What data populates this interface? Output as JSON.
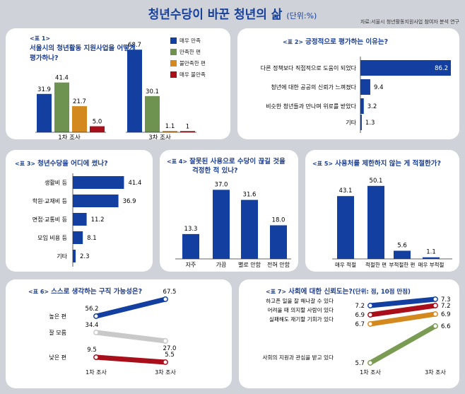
{
  "header": {
    "title": "청년수당이 바꾼 청년의 삶",
    "unit": "(단위:%)",
    "source": "자료:서울시 청년활동지원사업 참여자 분석 연구"
  },
  "colors": {
    "blue": "#1340a0",
    "green": "#6e9350",
    "orange": "#d4891f",
    "red": "#a80f1a",
    "grey": "#c9c9c9",
    "olive": "#7a9b52"
  },
  "chart_data": [
    {
      "id": "t1",
      "type": "bar",
      "num": "<표 1>",
      "title": "서울시의 청년활동 지원사업을 어떻게 평가하나?",
      "categories": [
        "1차 조사",
        "3차 조사"
      ],
      "series": [
        {
          "name": "매우 만족",
          "values": [
            31.9,
            68.7
          ]
        },
        {
          "name": "만족한 편",
          "values": [
            41.4,
            30.1
          ]
        },
        {
          "name": "불만족한 편",
          "values": [
            21.7,
            1.1
          ]
        },
        {
          "name": "매우 불만족",
          "values": [
            5.0,
            1
          ]
        }
      ],
      "value_labels": [
        [
          "31.9",
          "41.4",
          "21.7",
          "5.0"
        ],
        [
          "68.7",
          "30.1",
          "1.1",
          "1"
        ]
      ]
    },
    {
      "id": "t2",
      "type": "bar",
      "num": "<표 2>",
      "title": "긍정적으로 평가하는 이유는?",
      "categories": [
        "다른 정책보다 직접적으로 도움이 되었다",
        "청년에 대한 공공의 신뢰가 느껴졌다",
        "비슷한 청년들과 만나며 위로를 받았다",
        "기타"
      ],
      "values": [
        86.2,
        9.4,
        3.2,
        1.3
      ]
    },
    {
      "id": "t3",
      "type": "bar",
      "num": "<표 3>",
      "title": "청년수당을 어디에 썼나?",
      "categories": [
        "생활비 등",
        "학원·교재비 등",
        "면접·교통비 등",
        "모임 비용 등",
        "기타"
      ],
      "values": [
        41.4,
        36.9,
        11.2,
        8.1,
        2.3
      ]
    },
    {
      "id": "t4",
      "type": "bar",
      "num": "<표 4>",
      "title": "잘못된 사용으로 수당이 끊길 것을",
      "title2": "걱정한 적 있나?",
      "categories": [
        "자주",
        "가끔",
        "별로 안함",
        "전혀 안함"
      ],
      "values": [
        13.3,
        37.0,
        31.6,
        18.0
      ]
    },
    {
      "id": "t5",
      "type": "bar",
      "num": "<표 5>",
      "title": "사용처를 제한하지 않는 게 적절한가?",
      "categories": [
        "매우 적절",
        "적절한 편",
        "부적절한 편",
        "매우 부적절"
      ],
      "values": [
        43.1,
        50.1,
        5.6,
        1.1
      ]
    },
    {
      "id": "t6",
      "type": "line",
      "num": "<표 6>",
      "title": "스스로 생각하는 구직 가능성은?",
      "x": [
        "1차 조사",
        "3차 조사"
      ],
      "series": [
        {
          "name": "높은 편",
          "values": [
            56.2,
            67.5
          ]
        },
        {
          "name": "잘 모름",
          "values": [
            34.4,
            27.0
          ]
        },
        {
          "name": "낮은 편",
          "values": [
            9.5,
            5.5
          ]
        }
      ]
    },
    {
      "id": "t7",
      "type": "line",
      "num": "<표 7>",
      "title": "사회에 대한 신뢰도는?",
      "title_unit": "(단위: 점, 10점 만점)",
      "x": [
        "1차 조사",
        "3차 조사"
      ],
      "series": [
        {
          "name": "하고픈 일을 잘 해나갈 수 있다",
          "values": [
            7.2,
            7.3
          ]
        },
        {
          "name": "어려울 때 의지할 사람이 있다",
          "values": [
            6.9,
            7.2
          ]
        },
        {
          "name": "실패해도 재기할 기회가 있다",
          "values": [
            6.7,
            6.9
          ]
        },
        {
          "name": "사회의 지원과 관심을 받고 있다",
          "values": [
            5.7,
            6.6
          ]
        }
      ]
    }
  ]
}
